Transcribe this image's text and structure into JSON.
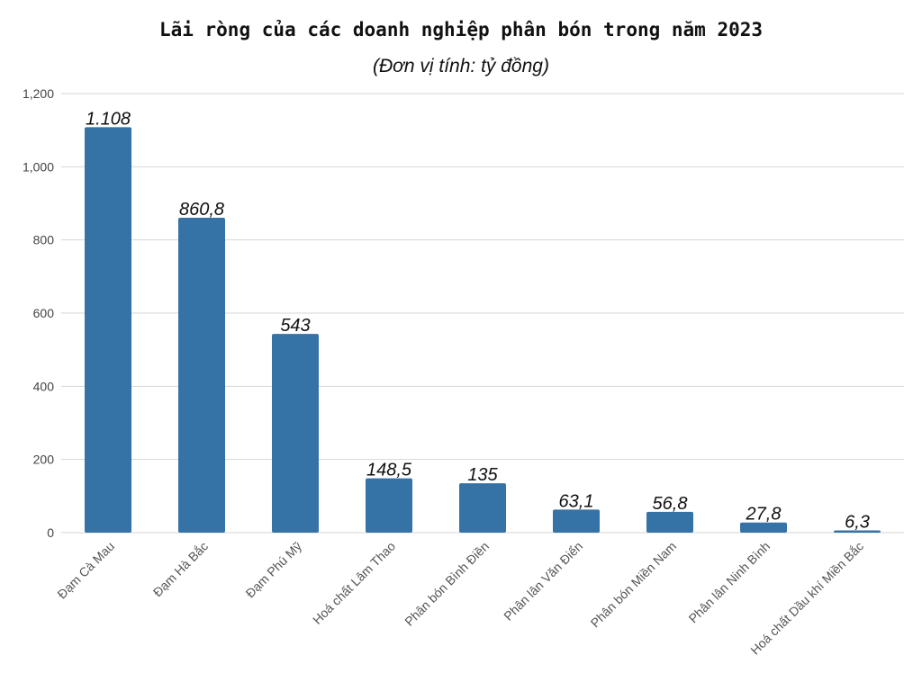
{
  "chart_data": {
    "type": "bar",
    "title": "Lãi ròng của các doanh nghiệp phân bón trong năm 2023",
    "subtitle": "(Đơn vị tính: tỷ đồng)",
    "categories": [
      "Đạm Cà Mau",
      "Đạm Hà Bắc",
      "Đạm Phú Mỹ",
      "Hoá chất Lâm Thao",
      "Phân bón Bình Điền",
      "Phân lân Văn Điển",
      "Phân bón Miền Nam",
      "Phân lân Ninh Bình",
      "Hoá chất Dầu khí Miền Bắc"
    ],
    "values": [
      1108,
      860.8,
      543,
      148.5,
      135,
      63.1,
      56.8,
      27.8,
      6.3
    ],
    "value_labels": [
      "1.108",
      "860,8",
      "543",
      "148,5",
      "135",
      "63,1",
      "56,8",
      "27,8",
      "6,3"
    ],
    "y_ticks": [
      0,
      200,
      400,
      600,
      800,
      1000,
      1200
    ],
    "y_tick_labels": [
      "0",
      "200",
      "400",
      "600",
      "800",
      "1,000",
      "1,200"
    ],
    "ylim": [
      0,
      1200
    ],
    "grid": true,
    "bar_color": "#3572a5"
  }
}
